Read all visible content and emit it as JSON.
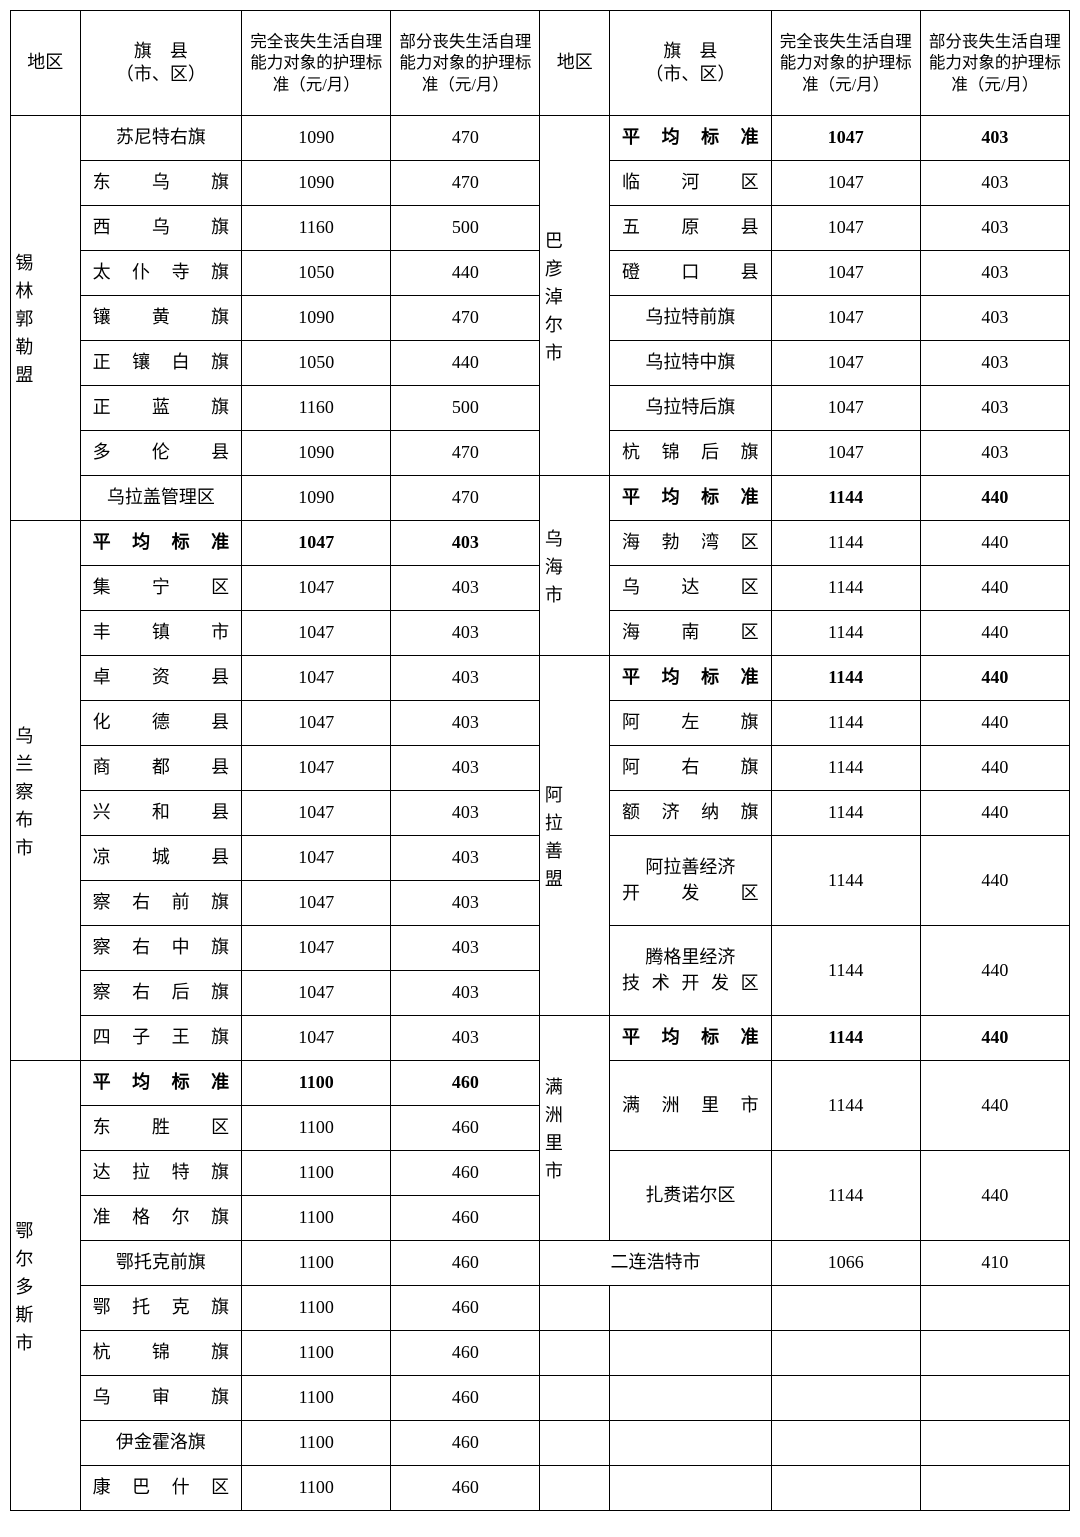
{
  "headers": {
    "region": "地区",
    "county": "旗　县\n（市、区）",
    "full": "完全丧失生活自理能力对象的护理标准（元/月）",
    "partial": "部分丧失生活自理能力对象的护理标准（元/月）"
  },
  "avg_label": "平均标准",
  "regions": {
    "xilingol": {
      "name": "锡林郭勒盟",
      "rows": [
        {
          "c": "苏尼特右旗",
          "f": "1090",
          "p": "470"
        },
        {
          "c": "东乌旗",
          "f": "1090",
          "p": "470",
          "j": true
        },
        {
          "c": "西乌旗",
          "f": "1160",
          "p": "500",
          "j": true
        },
        {
          "c": "太仆寺旗",
          "f": "1050",
          "p": "440",
          "j": true
        },
        {
          "c": "镶黄旗",
          "f": "1090",
          "p": "470",
          "j": true
        },
        {
          "c": "正镶白旗",
          "f": "1050",
          "p": "440",
          "j": true
        },
        {
          "c": "正蓝旗",
          "f": "1160",
          "p": "500",
          "j": true
        },
        {
          "c": "多伦县",
          "f": "1090",
          "p": "470",
          "j": true
        },
        {
          "c": "乌拉盖管理区",
          "f": "1090",
          "p": "470"
        }
      ]
    },
    "ulanqab": {
      "name": "乌兰察布市",
      "rows": [
        {
          "c": "平均标准",
          "f": "1047",
          "p": "403",
          "bold": true,
          "j": true
        },
        {
          "c": "集宁区",
          "f": "1047",
          "p": "403",
          "j": true
        },
        {
          "c": "丰镇市",
          "f": "1047",
          "p": "403",
          "j": true
        },
        {
          "c": "卓资县",
          "f": "1047",
          "p": "403",
          "j": true
        },
        {
          "c": "化德县",
          "f": "1047",
          "p": "403",
          "j": true
        },
        {
          "c": "商都县",
          "f": "1047",
          "p": "403",
          "j": true
        },
        {
          "c": "兴和县",
          "f": "1047",
          "p": "403",
          "j": true
        },
        {
          "c": "凉城县",
          "f": "1047",
          "p": "403",
          "j": true
        },
        {
          "c": "察右前旗",
          "f": "1047",
          "p": "403",
          "j": true
        },
        {
          "c": "察右中旗",
          "f": "1047",
          "p": "403",
          "j": true
        },
        {
          "c": "察右后旗",
          "f": "1047",
          "p": "403",
          "j": true
        },
        {
          "c": "四子王旗",
          "f": "1047",
          "p": "403",
          "j": true
        }
      ]
    },
    "ordos": {
      "name": "鄂尔多斯市",
      "rows": [
        {
          "c": "平均标准",
          "f": "1100",
          "p": "460",
          "bold": true,
          "j": true
        },
        {
          "c": "东胜区",
          "f": "1100",
          "p": "460",
          "j": true
        },
        {
          "c": "达拉特旗",
          "f": "1100",
          "p": "460",
          "j": true
        },
        {
          "c": "准格尔旗",
          "f": "1100",
          "p": "460",
          "j": true
        },
        {
          "c": "鄂托克前旗",
          "f": "1100",
          "p": "460"
        },
        {
          "c": "鄂托克旗",
          "f": "1100",
          "p": "460",
          "j": true
        },
        {
          "c": "杭锦旗",
          "f": "1100",
          "p": "460",
          "j": true
        },
        {
          "c": "乌审旗",
          "f": "1100",
          "p": "460",
          "j": true
        },
        {
          "c": "伊金霍洛旗",
          "f": "1100",
          "p": "460"
        },
        {
          "c": "康巴什区",
          "f": "1100",
          "p": "460",
          "j": true
        }
      ]
    },
    "bayannur": {
      "name": "巴彦淖尔市",
      "rows": [
        {
          "c": "平均标准",
          "f": "1047",
          "p": "403",
          "bold": true,
          "j": true
        },
        {
          "c": "临河区",
          "f": "1047",
          "p": "403",
          "j": true
        },
        {
          "c": "五原县",
          "f": "1047",
          "p": "403",
          "j": true
        },
        {
          "c": "磴口县",
          "f": "1047",
          "p": "403",
          "j": true
        },
        {
          "c": "乌拉特前旗",
          "f": "1047",
          "p": "403"
        },
        {
          "c": "乌拉特中旗",
          "f": "1047",
          "p": "403"
        },
        {
          "c": "乌拉特后旗",
          "f": "1047",
          "p": "403"
        },
        {
          "c": "杭锦后旗",
          "f": "1047",
          "p": "403",
          "j": true
        }
      ]
    },
    "wuhai": {
      "name": "乌海市",
      "rows": [
        {
          "c": "平均标准",
          "f": "1144",
          "p": "440",
          "bold": true,
          "j": true
        },
        {
          "c": "海勃湾区",
          "f": "1144",
          "p": "440",
          "j": true
        },
        {
          "c": "乌达区",
          "f": "1144",
          "p": "440",
          "j": true
        },
        {
          "c": "海南区",
          "f": "1144",
          "p": "440",
          "j": true
        }
      ]
    },
    "alxa": {
      "name": "阿拉善盟",
      "rows": [
        {
          "c": "平均标准",
          "f": "1144",
          "p": "440",
          "bold": true,
          "j": true
        },
        {
          "c": "阿左旗",
          "f": "1144",
          "p": "440",
          "j": true
        },
        {
          "c": "阿右旗",
          "f": "1144",
          "p": "440",
          "j": true
        },
        {
          "c": "额济纳旗",
          "f": "1144",
          "p": "440",
          "j": true
        },
        {
          "c": "阿拉善经济开　发　区",
          "f": "1144",
          "p": "440",
          "rs": 2,
          "multi": true
        },
        {
          "c": "腾格里经济技术开发区",
          "f": "1144",
          "p": "440",
          "rs": 2,
          "multi": true
        }
      ]
    },
    "manzhouli": {
      "name": "满洲里市",
      "rows": [
        {
          "c": "平均标准",
          "f": "1144",
          "p": "440",
          "bold": true,
          "j": true
        },
        {
          "c": "满洲里市",
          "f": "1144",
          "p": "440",
          "rs": 2,
          "j": true
        },
        {
          "c": "扎赉诺尔区",
          "f": "1144",
          "p": "440",
          "rs": 2
        }
      ]
    },
    "erlianhot": {
      "name": "二连浩特市",
      "f": "1066",
      "p": "410"
    }
  }
}
